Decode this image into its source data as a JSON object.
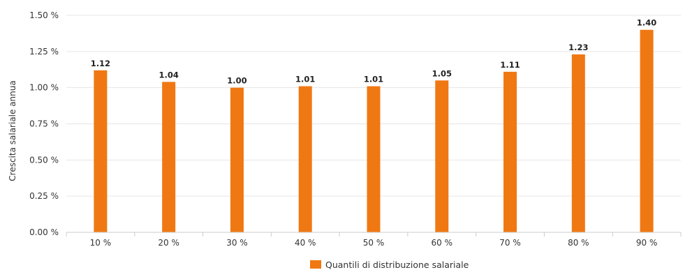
{
  "chart_data": {
    "type": "bar",
    "categories": [
      "10 %",
      "20 %",
      "30 %",
      "40 %",
      "50 %",
      "60 %",
      "70 %",
      "80 %",
      "90 %"
    ],
    "series": [
      {
        "name": "Quantili di distribuzione salariale",
        "values": [
          1.12,
          1.04,
          1.0,
          1.01,
          1.01,
          1.05,
          1.11,
          1.23,
          1.4
        ],
        "labels": [
          "1.12",
          "1.04",
          "1.00",
          "1.01",
          "1.01",
          "1.05",
          "1.11",
          "1.23",
          "1.40"
        ],
        "color": "#f07812"
      }
    ],
    "ylabel": "Crescita salariale annua",
    "ylim": [
      0,
      1.5
    ],
    "yticks": [
      {
        "value": 0,
        "label": "0.00 %"
      },
      {
        "value": 0.25,
        "label": "0.25 %"
      },
      {
        "value": 0.5,
        "label": "0.50 %"
      },
      {
        "value": 0.75,
        "label": "0.75 %"
      },
      {
        "value": 1.0,
        "label": "1.00 %"
      },
      {
        "value": 1.25,
        "label": "1.25 %"
      },
      {
        "value": 1.5,
        "label": "1.50 %"
      }
    ],
    "grid": true,
    "legend_position": "bottom-center"
  }
}
